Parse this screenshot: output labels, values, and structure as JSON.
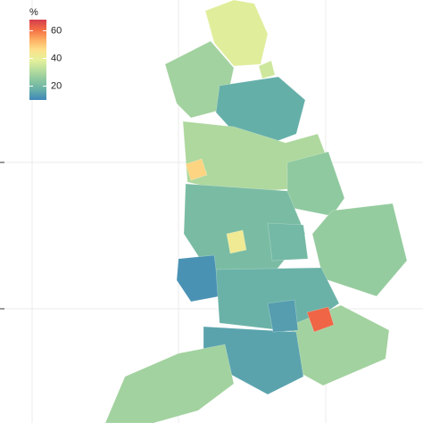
{
  "chart_data": {
    "type": "choropleth",
    "legend_title": "%",
    "values": [
      38,
      28,
      17,
      30,
      25,
      21,
      26,
      12,
      18,
      28,
      15,
      28,
      48,
      42,
      62,
      35,
      20,
      14
    ],
    "clim": [
      10,
      68
    ],
    "cticks": [
      20,
      40,
      60
    ]
  }
}
